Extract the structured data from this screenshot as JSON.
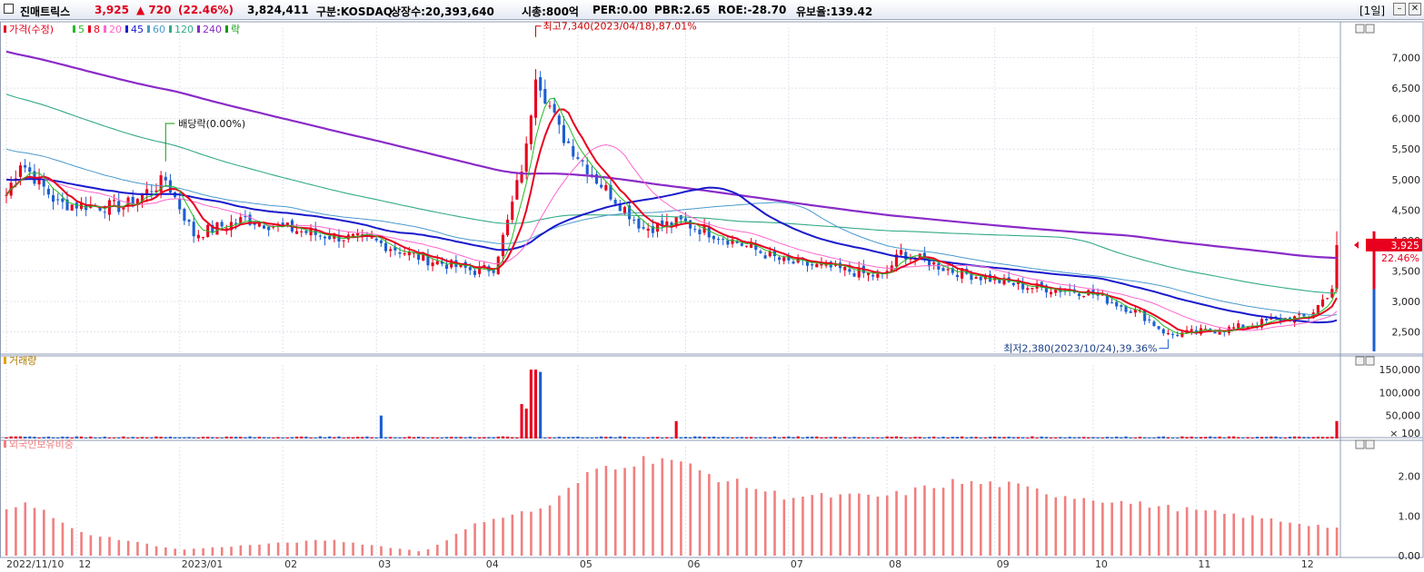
{
  "header": {
    "stock_name": "진매트릭스",
    "price": "3,925",
    "change": "▲ 720",
    "change_pct": "(22.46%)",
    "volume": "3,824,411",
    "market": "구분:KOSDAQ",
    "shares": "상장수:20,393,640",
    "market_cap": "시총:800억",
    "per": "PER:0.00",
    "pbr": "PBR:2.65",
    "roe": "ROE:-28.70",
    "retention": "유보율:139.42",
    "period": "[1일]"
  },
  "legend": {
    "price": [
      {
        "label": "가격(수정)",
        "color": "#e8001e"
      },
      {
        "label": "5",
        "color": "#22bb22"
      },
      {
        "label": "8",
        "color": "#e8001e"
      },
      {
        "label": "20",
        "color": "#ff66cc"
      },
      {
        "label": "45",
        "color": "#1a1acc"
      },
      {
        "label": "60",
        "color": "#4a9acc"
      },
      {
        "label": "120",
        "color": "#33aa88"
      },
      {
        "label": "240",
        "color": "#8a2bc8"
      },
      {
        "label": "락",
        "color": "#119911"
      }
    ],
    "volume": "거래량",
    "foreign": "외국인보유비중"
  },
  "annotations": {
    "high": "최고7,340(2023/04/18),87.01%",
    "low": "최저2,380(2023/10/24),39.36%",
    "dividend": "배당락(0.00%)",
    "last_price": "3,925",
    "last_pct": "22.46%"
  },
  "colors": {
    "up": "#e8001e",
    "down": "#1c5fd0",
    "foreign": "#f08080"
  },
  "chart_data": [
    {
      "type": "candlestick",
      "title": "가격(수정)",
      "x_ticks": [
        "2022/11/10",
        "12",
        "2023/01",
        "02",
        "03",
        "04",
        "05",
        "06",
        "07",
        "08",
        "09",
        "10",
        "11",
        "12"
      ],
      "y_ticks": [
        "7,000",
        "6,500",
        "6,000",
        "5,500",
        "5,000",
        "4,500",
        "4,000",
        "3,500",
        "3,000",
        "2,500"
      ],
      "ylim": [
        2150,
        7500
      ],
      "moving_averages": [
        "5",
        "8",
        "20",
        "45",
        "60",
        "120",
        "240"
      ],
      "approximate_close": [
        {
          "date": "2022-11-10",
          "close": 4750
        },
        {
          "date": "2022-11-15",
          "close": 5300
        },
        {
          "date": "2022-11-25",
          "close": 4600
        },
        {
          "date": "2022-12-15",
          "close": 4550
        },
        {
          "date": "2022-12-28",
          "close": 5000
        },
        {
          "date": "2023-01-05",
          "close": 4100
        },
        {
          "date": "2023-01-20",
          "close": 4350
        },
        {
          "date": "2023-02-10",
          "close": 4100
        },
        {
          "date": "2023-02-28",
          "close": 4000
        },
        {
          "date": "2023-03-15",
          "close": 3700
        },
        {
          "date": "2023-03-30",
          "close": 3500
        },
        {
          "date": "2023-04-05",
          "close": 3550
        },
        {
          "date": "2023-04-10",
          "close": 4300
        },
        {
          "date": "2023-04-14",
          "close": 5500
        },
        {
          "date": "2023-04-18",
          "close": 6800
        },
        {
          "date": "2023-04-25",
          "close": 5800
        },
        {
          "date": "2023-05-05",
          "close": 5000
        },
        {
          "date": "2023-05-20",
          "close": 4200
        },
        {
          "date": "2023-05-31",
          "close": 4300
        },
        {
          "date": "2023-06-15",
          "close": 4000
        },
        {
          "date": "2023-06-30",
          "close": 3650
        },
        {
          "date": "2023-07-15",
          "close": 3550
        },
        {
          "date": "2023-07-31",
          "close": 3400
        },
        {
          "date": "2023-08-05",
          "close": 3800
        },
        {
          "date": "2023-08-20",
          "close": 3500
        },
        {
          "date": "2023-09-10",
          "close": 3250
        },
        {
          "date": "2023-09-30",
          "close": 3150
        },
        {
          "date": "2023-10-15",
          "close": 2800
        },
        {
          "date": "2023-10-24",
          "close": 2450
        },
        {
          "date": "2023-11-10",
          "close": 2550
        },
        {
          "date": "2023-11-25",
          "close": 2700
        },
        {
          "date": "2023-12-05",
          "close": 2750
        },
        {
          "date": "2023-12-12",
          "close": 3205
        },
        {
          "date": "2023-12-13",
          "close": 3925
        }
      ]
    },
    {
      "type": "bar",
      "title": "거래량",
      "y_ticks": [
        "150,000",
        "100,000",
        "50,000"
      ],
      "unit_label": "× 100",
      "ylim": [
        0,
        160000
      ],
      "notable_values": [
        {
          "date": "2023-03-02",
          "value": 50000
        },
        {
          "date": "2023-04-13",
          "value": 75000
        },
        {
          "date": "2023-04-14",
          "value": 65000
        },
        {
          "date": "2023-04-17",
          "value": 150000
        },
        {
          "date": "2023-04-18",
          "value": 150000
        },
        {
          "date": "2023-04-19",
          "value": 145000
        },
        {
          "date": "2023-05-30",
          "value": 38000
        },
        {
          "date": "2023-12-13",
          "value": 38000
        }
      ],
      "baseline_value": 3000
    },
    {
      "type": "bar",
      "title": "외국인보유비중",
      "y_ticks": [
        "2.00",
        "1.00",
        "0.00"
      ],
      "ylim": [
        0,
        2.75
      ],
      "approximate_values": [
        {
          "date": "2022-11-10",
          "value": 1.2
        },
        {
          "date": "2022-11-16",
          "value": 1.4
        },
        {
          "date": "2022-12-01",
          "value": 0.6
        },
        {
          "date": "2023-01-02",
          "value": 0.15
        },
        {
          "date": "2023-02-15",
          "value": 0.4
        },
        {
          "date": "2023-03-15",
          "value": 0.1
        },
        {
          "date": "2023-04-03",
          "value": 0.9
        },
        {
          "date": "2023-04-20",
          "value": 1.2
        },
        {
          "date": "2023-05-05",
          "value": 2.2
        },
        {
          "date": "2023-05-25",
          "value": 2.5
        },
        {
          "date": "2023-06-10",
          "value": 2.0
        },
        {
          "date": "2023-07-01",
          "value": 1.5
        },
        {
          "date": "2023-08-01",
          "value": 1.5
        },
        {
          "date": "2023-08-20",
          "value": 1.85
        },
        {
          "date": "2023-09-05",
          "value": 1.8
        },
        {
          "date": "2023-09-20",
          "value": 1.55
        },
        {
          "date": "2023-10-15",
          "value": 1.3
        },
        {
          "date": "2023-11-15",
          "value": 1.0
        },
        {
          "date": "2023-12-13",
          "value": 0.7
        }
      ]
    }
  ]
}
